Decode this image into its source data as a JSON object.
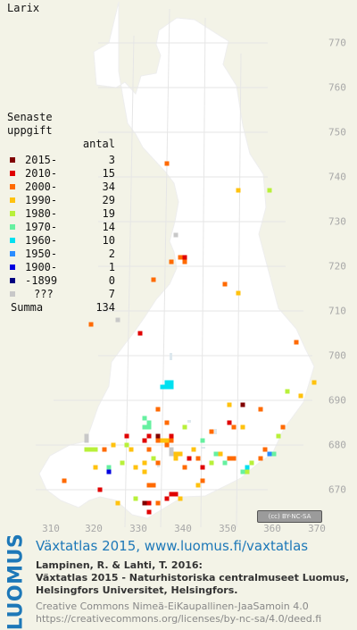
{
  "species": "Larix",
  "legend": {
    "title_line1": "Senaste",
    "title_line2": "uppgift",
    "count_header": "antal",
    "rows": [
      {
        "label": "2015-",
        "count": "3",
        "color": "#800000"
      },
      {
        "label": "2010-",
        "count": "15",
        "color": "#e00000"
      },
      {
        "label": "2000-",
        "count": "34",
        "color": "#ff6a00"
      },
      {
        "label": "1990-",
        "count": "29",
        "color": "#ffc20e"
      },
      {
        "label": "1980-",
        "count": "19",
        "color": "#b8f03a"
      },
      {
        "label": "1970-",
        "count": "14",
        "color": "#66f0a0"
      },
      {
        "label": "1960-",
        "count": "10",
        "color": "#00e0f0"
      },
      {
        "label": "1950-",
        "count": "2",
        "color": "#2a8cff"
      },
      {
        "label": "1900-",
        "count": "1",
        "color": "#0000e0"
      },
      {
        "label": "-1899",
        "count": "0",
        "color": "#000080"
      },
      {
        "label": "???",
        "count": "7",
        "color": "#c8c8c8"
      }
    ],
    "total_label": "Summa",
    "total_count": "134"
  },
  "axes": {
    "x_ticks": [
      "310",
      "320",
      "330",
      "340",
      "350",
      "360",
      "370"
    ],
    "y_ticks": [
      "770",
      "760",
      "750",
      "740",
      "730",
      "720",
      "710",
      "700",
      "690",
      "680",
      "670"
    ]
  },
  "license_badge": "(cc) BY-NC-SA",
  "logo": "LUOMUS",
  "footer": {
    "title": "Växtatlas 2015, www.luomus.fi/vaxtatlas",
    "citation_line1": "Lampinen, R. & Lahti, T. 2016:",
    "citation_line2": "Växtatlas 2015 - Naturhistoriska centralmuseet Luomus,",
    "citation_line3": "Helsingfors Universitet, Helsingfors.",
    "license_line1": "Creative Commons Nimeä-EiKaupallinen-JaaSamoin 4.0",
    "license_line2": "https://creativecommons.org/licenses/by-nc-sa/4.0/deed.fi"
  },
  "observations": [
    {
      "x": 336,
      "y": 743,
      "cat": "1990-"
    },
    {
      "x": 336,
      "y": 743,
      "cat": "2000-"
    },
    {
      "x": 352,
      "y": 737,
      "cat": "1990-"
    },
    {
      "x": 359,
      "y": 737,
      "cat": "1980-"
    },
    {
      "x": 338,
      "y": 727,
      "cat": "???"
    },
    {
      "x": 339,
      "y": 722,
      "cat": "2000-"
    },
    {
      "x": 340,
      "y": 722,
      "cat": "2010-"
    },
    {
      "x": 337,
      "y": 721,
      "cat": "2000-"
    },
    {
      "x": 340,
      "y": 721,
      "cat": "2000-"
    },
    {
      "x": 333,
      "y": 717,
      "cat": "2000-"
    },
    {
      "x": 349,
      "y": 716,
      "cat": "2000-"
    },
    {
      "x": 352,
      "y": 714,
      "cat": "1990-"
    },
    {
      "x": 325,
      "y": 708,
      "cat": "???"
    },
    {
      "x": 319,
      "y": 707,
      "cat": "2000-"
    },
    {
      "x": 330,
      "y": 705,
      "cat": "2010-"
    },
    {
      "x": 365,
      "y": 703,
      "cat": "2000-"
    },
    {
      "x": 369,
      "y": 694,
      "cat": "1990-"
    },
    {
      "x": 335,
      "y": 693,
      "cat": "1960-"
    },
    {
      "x": 336,
      "y": 694,
      "cat": "1960-"
    },
    {
      "x": 337,
      "y": 694,
      "cat": "1960-"
    },
    {
      "x": 336,
      "y": 693,
      "cat": "1960-"
    },
    {
      "x": 337,
      "y": 693,
      "cat": "1960-"
    },
    {
      "x": 363,
      "y": 692,
      "cat": "1980-"
    },
    {
      "x": 366,
      "y": 691,
      "cat": "1990-"
    },
    {
      "x": 350,
      "y": 689,
      "cat": "1990-"
    },
    {
      "x": 353,
      "y": 689,
      "cat": "2015-"
    },
    {
      "x": 357,
      "y": 688,
      "cat": "2000-"
    },
    {
      "x": 334,
      "y": 688,
      "cat": "2000-"
    },
    {
      "x": 331,
      "y": 686,
      "cat": "1970-"
    },
    {
      "x": 331,
      "y": 684,
      "cat": "1970-"
    },
    {
      "x": 332,
      "y": 685,
      "cat": "1970-"
    },
    {
      "x": 332,
      "y": 684,
      "cat": "1970-"
    },
    {
      "x": 336,
      "y": 685,
      "cat": "2000-"
    },
    {
      "x": 340,
      "y": 684,
      "cat": "1980-"
    },
    {
      "x": 350,
      "y": 685,
      "cat": "2010-"
    },
    {
      "x": 351,
      "y": 684,
      "cat": "2000-"
    },
    {
      "x": 353,
      "y": 684,
      "cat": "1990-"
    },
    {
      "x": 362,
      "y": 684,
      "cat": "2000-"
    },
    {
      "x": 361,
      "y": 682,
      "cat": "1980-"
    },
    {
      "x": 318,
      "y": 681,
      "cat": "???"
    },
    {
      "x": 318,
      "y": 682,
      "cat": "???"
    },
    {
      "x": 327,
      "y": 682,
      "cat": "2010-"
    },
    {
      "x": 331,
      "y": 681,
      "cat": "2010-"
    },
    {
      "x": 332,
      "y": 682,
      "cat": "2010-"
    },
    {
      "x": 334,
      "y": 682,
      "cat": "2015-"
    },
    {
      "x": 337,
      "y": 682,
      "cat": "2010-"
    },
    {
      "x": 337,
      "y": 681,
      "cat": "2000-"
    },
    {
      "x": 335,
      "y": 681,
      "cat": "1990-"
    },
    {
      "x": 334,
      "y": 681,
      "cat": "2000-"
    },
    {
      "x": 336,
      "y": 681,
      "cat": "1990-"
    },
    {
      "x": 336,
      "y": 680,
      "cat": "2000-"
    },
    {
      "x": 324,
      "y": 680,
      "cat": "1990-"
    },
    {
      "x": 327,
      "y": 680,
      "cat": "1980-"
    },
    {
      "x": 318,
      "y": 679,
      "cat": "1980-"
    },
    {
      "x": 319,
      "y": 679,
      "cat": "1980-"
    },
    {
      "x": 320,
      "y": 679,
      "cat": "1980-"
    },
    {
      "x": 322,
      "y": 679,
      "cat": "2000-"
    },
    {
      "x": 328,
      "y": 679,
      "cat": "1990-"
    },
    {
      "x": 332,
      "y": 679,
      "cat": "2000-"
    },
    {
      "x": 337,
      "y": 679,
      "cat": "???"
    },
    {
      "x": 337,
      "y": 678,
      "cat": "???"
    },
    {
      "x": 338,
      "y": 678,
      "cat": "1990-"
    },
    {
      "x": 339,
      "y": 678,
      "cat": "1990-"
    },
    {
      "x": 338,
      "y": 677,
      "cat": "1990-"
    },
    {
      "x": 342,
      "y": 679,
      "cat": "1990-"
    },
    {
      "x": 341,
      "y": 677,
      "cat": "2010-"
    },
    {
      "x": 343,
      "y": 677,
      "cat": "2000-"
    },
    {
      "x": 347,
      "y": 678,
      "cat": "1970-"
    },
    {
      "x": 348,
      "y": 678,
      "cat": "1990-"
    },
    {
      "x": 350,
      "y": 677,
      "cat": "2000-"
    },
    {
      "x": 351,
      "y": 677,
      "cat": "2000-"
    },
    {
      "x": 358,
      "y": 679,
      "cat": "2000-"
    },
    {
      "x": 359,
      "y": 678,
      "cat": "1950-"
    },
    {
      "x": 360,
      "y": 678,
      "cat": "1970-"
    },
    {
      "x": 357,
      "y": 677,
      "cat": "2000-"
    },
    {
      "x": 333,
      "y": 677,
      "cat": "1980-"
    },
    {
      "x": 331,
      "y": 676,
      "cat": "1990-"
    },
    {
      "x": 334,
      "y": 676,
      "cat": "2000-"
    },
    {
      "x": 329,
      "y": 675,
      "cat": "1990-"
    },
    {
      "x": 331,
      "y": 674,
      "cat": "1990-"
    },
    {
      "x": 326,
      "y": 676,
      "cat": "1980-"
    },
    {
      "x": 320,
      "y": 675,
      "cat": "1990-"
    },
    {
      "x": 323,
      "y": 675,
      "cat": "1970-"
    },
    {
      "x": 323,
      "y": 674,
      "cat": "1900-"
    },
    {
      "x": 340,
      "y": 675,
      "cat": "2000-"
    },
    {
      "x": 344,
      "y": 675,
      "cat": "2010-"
    },
    {
      "x": 346,
      "y": 676,
      "cat": "1980-"
    },
    {
      "x": 349,
      "y": 676,
      "cat": "1970-"
    },
    {
      "x": 354,
      "y": 675,
      "cat": "1960-"
    },
    {
      "x": 355,
      "y": 676,
      "cat": "1980-"
    },
    {
      "x": 354,
      "y": 674,
      "cat": "1980-"
    },
    {
      "x": 353,
      "y": 674,
      "cat": "1970-"
    },
    {
      "x": 344,
      "y": 672,
      "cat": "2000-"
    },
    {
      "x": 343,
      "y": 671,
      "cat": "1990-"
    },
    {
      "x": 332,
      "y": 671,
      "cat": "2000-"
    },
    {
      "x": 333,
      "y": 671,
      "cat": "2000-"
    },
    {
      "x": 337,
      "y": 669,
      "cat": "2010-"
    },
    {
      "x": 338,
      "y": 669,
      "cat": "2010-"
    },
    {
      "x": 336,
      "y": 668,
      "cat": "2010-"
    },
    {
      "x": 339,
      "y": 668,
      "cat": "1990-"
    },
    {
      "x": 334,
      "y": 667,
      "cat": "2000-"
    },
    {
      "x": 329,
      "y": 668,
      "cat": "1980-"
    },
    {
      "x": 331,
      "y": 667,
      "cat": "2015-"
    },
    {
      "x": 332,
      "y": 667,
      "cat": "2010-"
    },
    {
      "x": 332,
      "y": 665,
      "cat": "2010-"
    },
    {
      "x": 313,
      "y": 672,
      "cat": "2000-"
    },
    {
      "x": 321,
      "y": 670,
      "cat": "2010-"
    },
    {
      "x": 325,
      "y": 667,
      "cat": "1990-"
    },
    {
      "x": 346,
      "y": 683,
      "cat": "2000-"
    },
    {
      "x": 344,
      "y": 681,
      "cat": "1970-"
    }
  ]
}
